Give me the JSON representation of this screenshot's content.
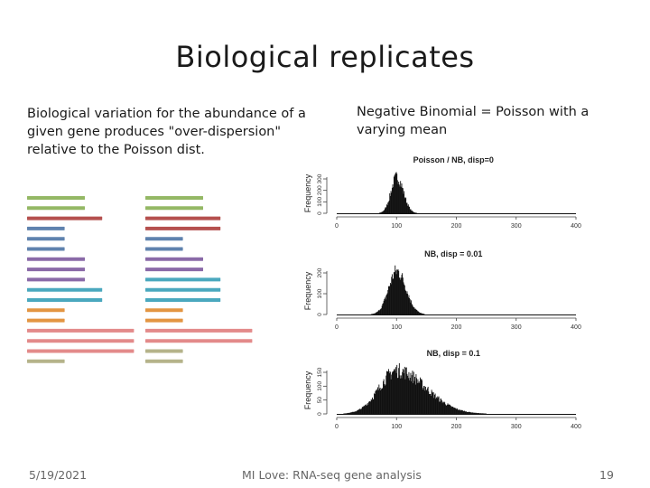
{
  "slide": {
    "title": "Biological replicates",
    "left_text": "Biological variation for the abundance of a given gene produces \"over-dispersion\" relative to the Poisson dist.",
    "right_text": "Negative Binomial = Poisson with a varying mean"
  },
  "footer": {
    "date": "5/19/2021",
    "center": "MI Love: RNA-seq gene analysis",
    "page": "19"
  },
  "replicate_bars": {
    "left": [
      {
        "color": "#94b865",
        "len": 1
      },
      {
        "color": "#94b865",
        "len": 1
      },
      {
        "color": "#b5504e",
        "len": 1.3
      },
      {
        "color": "#5f82ae",
        "len": 0.65
      },
      {
        "color": "#5f82ae",
        "len": 0.65
      },
      {
        "color": "#5f82ae",
        "len": 0.65
      },
      {
        "color": "#8a6aa8",
        "len": 1
      },
      {
        "color": "#8a6aa8",
        "len": 1
      },
      {
        "color": "#8a6aa8",
        "len": 1
      },
      {
        "color": "#4aa8be",
        "len": 1.3
      },
      {
        "color": "#4aa8be",
        "len": 1.3
      },
      {
        "color": "#e39542",
        "len": 0.65
      },
      {
        "color": "#e39542",
        "len": 0.65
      },
      {
        "color": "#e38a8a",
        "len": 1.85
      },
      {
        "color": "#e38a8a",
        "len": 1.85
      },
      {
        "color": "#e38a8a",
        "len": 1.85
      },
      {
        "color": "#b5b38a",
        "len": 0.65
      }
    ],
    "right": [
      {
        "color": "#94b865",
        "len": 1
      },
      {
        "color": "#94b865",
        "len": 1
      },
      {
        "color": "#b5504e",
        "len": 1.3
      },
      {
        "color": "#b5504e",
        "len": 1.3
      },
      {
        "color": "#5f82ae",
        "len": 0.65
      },
      {
        "color": "#5f82ae",
        "len": 0.65
      },
      {
        "color": "#8a6aa8",
        "len": 1
      },
      {
        "color": "#8a6aa8",
        "len": 1
      },
      {
        "color": "#4aa8be",
        "len": 1.3
      },
      {
        "color": "#4aa8be",
        "len": 1.3
      },
      {
        "color": "#4aa8be",
        "len": 1.3
      },
      {
        "color": "#e39542",
        "len": 0.65
      },
      {
        "color": "#e39542",
        "len": 0.65
      },
      {
        "color": "#e38a8a",
        "len": 1.85
      },
      {
        "color": "#e38a8a",
        "len": 1.85
      },
      {
        "color": "#b5b38a",
        "len": 0.65
      },
      {
        "color": "#b5b38a",
        "len": 0.65
      }
    ]
  },
  "chart_data": [
    {
      "type": "histogram",
      "title": "Poisson / NB, disp=0",
      "ylabel": "Frequency",
      "xlim": [
        0,
        400
      ],
      "x_ticks": [
        "0",
        "100",
        "200",
        "300",
        "400"
      ],
      "y_ticks": [
        "0",
        "100",
        "200",
        "300"
      ],
      "mean": 100,
      "dispersion": 0
    },
    {
      "type": "histogram",
      "title": "NB, disp = 0.01",
      "ylabel": "Frequency",
      "xlim": [
        0,
        400
      ],
      "x_ticks": [
        "0",
        "100",
        "200",
        "300",
        "400"
      ],
      "y_ticks": [
        "0",
        "100",
        "200"
      ],
      "mean": 100,
      "dispersion": 0.01
    },
    {
      "type": "histogram",
      "title": "NB, disp = 0.1",
      "ylabel": "Frequency",
      "xlim": [
        0,
        400
      ],
      "x_ticks": [
        "0",
        "100",
        "200",
        "300",
        "400"
      ],
      "y_ticks": [
        "0",
        "50",
        "100",
        "150"
      ],
      "mean": 100,
      "dispersion": 0.1
    }
  ]
}
